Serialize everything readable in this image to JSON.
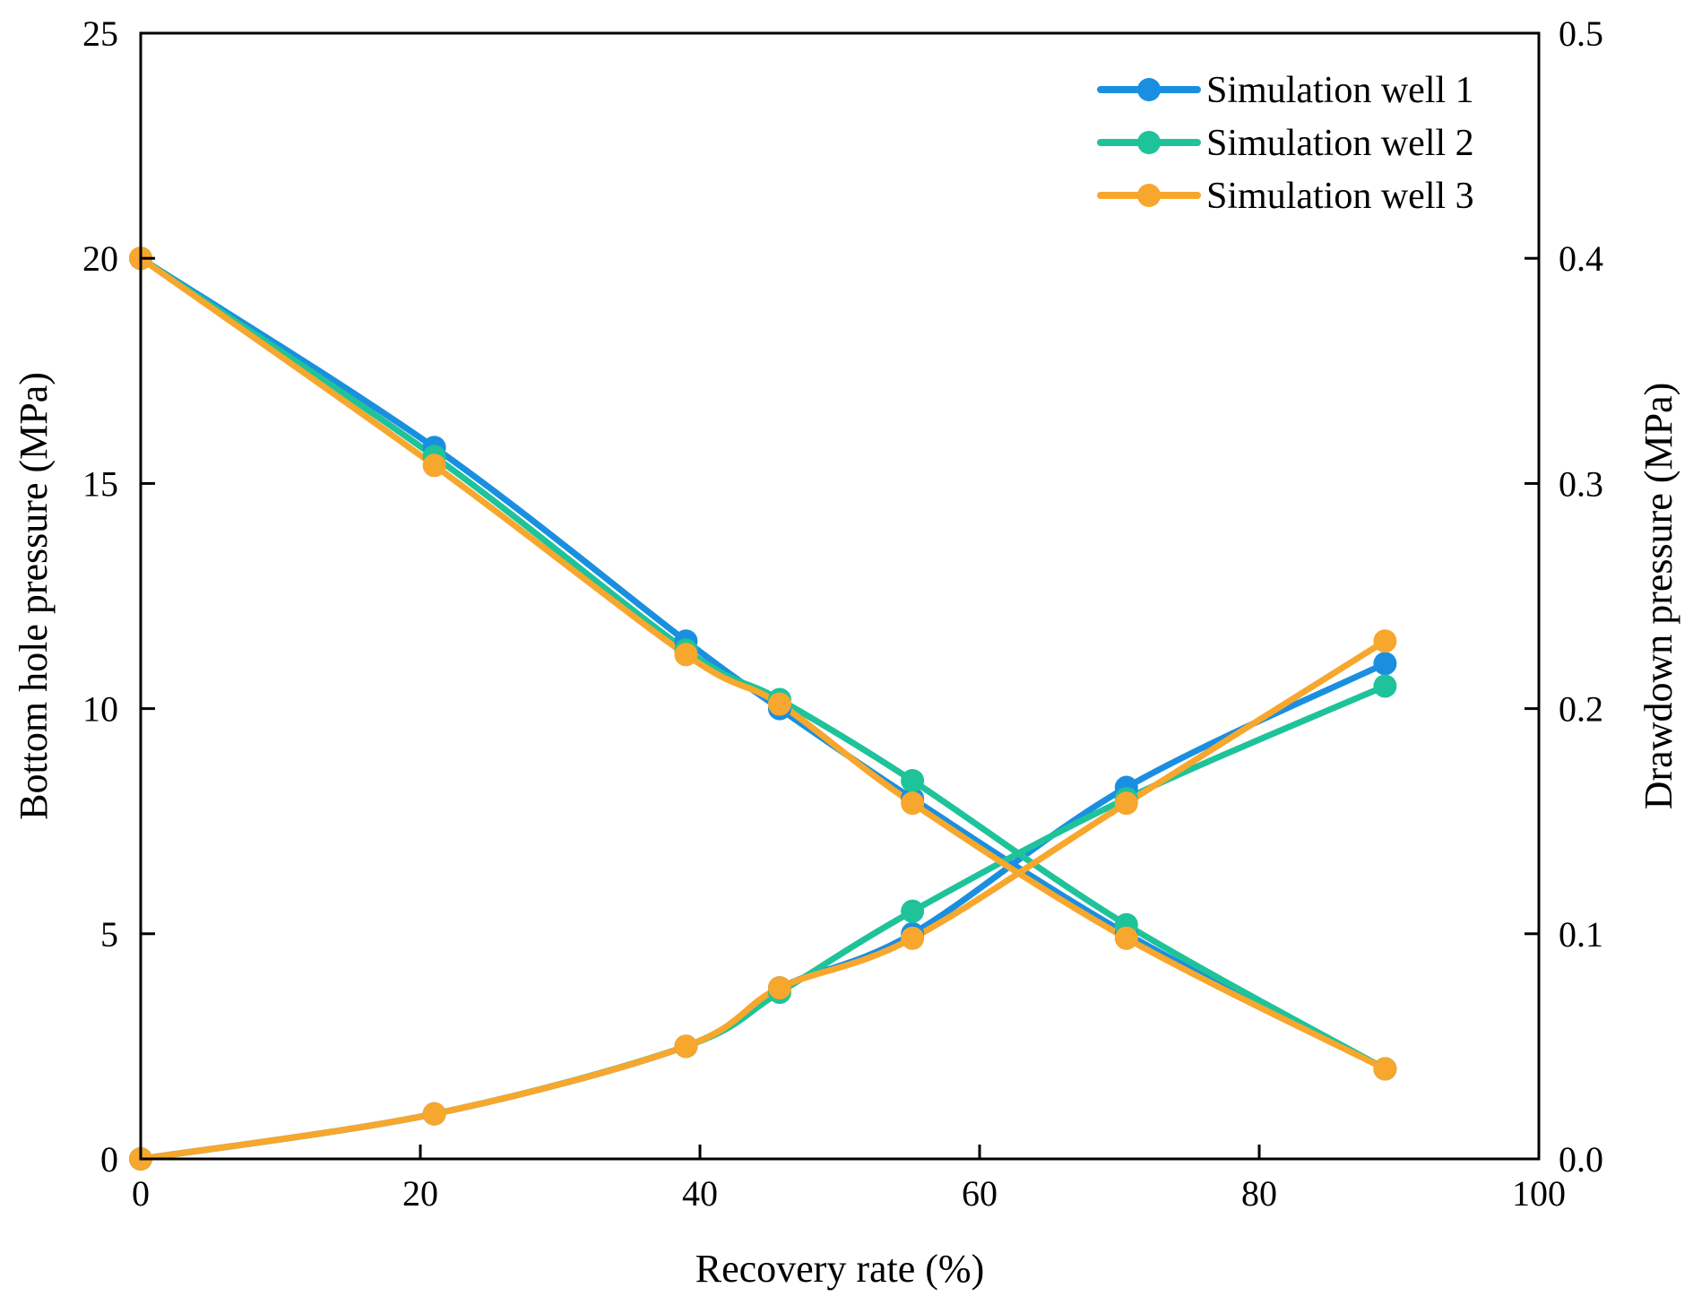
{
  "chart_data": {
    "type": "line",
    "title": "",
    "xlabel": "Recovery rate (%)",
    "ylabel_left": "Bottom hole pressure (MPa)",
    "ylabel_right": "Drawdown pressure (MPa)",
    "xlim": [
      0,
      100
    ],
    "ylim_left": [
      0,
      25
    ],
    "ylim_right": [
      0.0,
      0.5
    ],
    "x_ticks": [
      "0",
      "20",
      "40",
      "60",
      "80",
      "100"
    ],
    "y_left_ticks": [
      "0",
      "5",
      "10",
      "15",
      "20",
      "25"
    ],
    "y_right_ticks": [
      "0.0",
      "0.1",
      "0.2",
      "0.3",
      "0.4",
      "0.5"
    ],
    "legend_position": "top-right",
    "grid": false,
    "series": [
      {
        "name": "Simulation well 1",
        "color": "#1a8fe0",
        "bottom_hole_pressure": {
          "x": [
            0,
            21,
            39,
            45.7,
            55.2,
            70.5,
            89
          ],
          "y": [
            20,
            15.8,
            11.5,
            10.0,
            8.0,
            5.0,
            2.0
          ]
        },
        "drawdown_pressure": {
          "x": [
            0,
            21,
            39,
            45.7,
            55.2,
            70.5,
            89
          ],
          "y": [
            0.0,
            0.02,
            0.05,
            0.076,
            0.1,
            0.165,
            0.22
          ]
        }
      },
      {
        "name": "Simulation well 2",
        "color": "#1fc39a",
        "bottom_hole_pressure": {
          "x": [
            0,
            21,
            39,
            45.7,
            55.2,
            70.5,
            89
          ],
          "y": [
            20,
            15.6,
            11.3,
            10.2,
            8.4,
            5.2,
            2.0
          ]
        },
        "drawdown_pressure": {
          "x": [
            0,
            21,
            39,
            45.7,
            55.2,
            70.5,
            89
          ],
          "y": [
            0.0,
            0.02,
            0.05,
            0.074,
            0.11,
            0.16,
            0.21
          ]
        }
      },
      {
        "name": "Simulation well 3",
        "color": "#f7a72d",
        "bottom_hole_pressure": {
          "x": [
            0,
            21,
            39,
            45.7,
            55.2,
            70.5,
            89
          ],
          "y": [
            20,
            15.4,
            11.2,
            10.1,
            7.9,
            4.9,
            2.0
          ]
        },
        "drawdown_pressure": {
          "x": [
            0,
            21,
            39,
            45.7,
            55.2,
            70.5,
            89
          ],
          "y": [
            0.0,
            0.02,
            0.05,
            0.076,
            0.098,
            0.158,
            0.23
          ]
        }
      }
    ]
  }
}
